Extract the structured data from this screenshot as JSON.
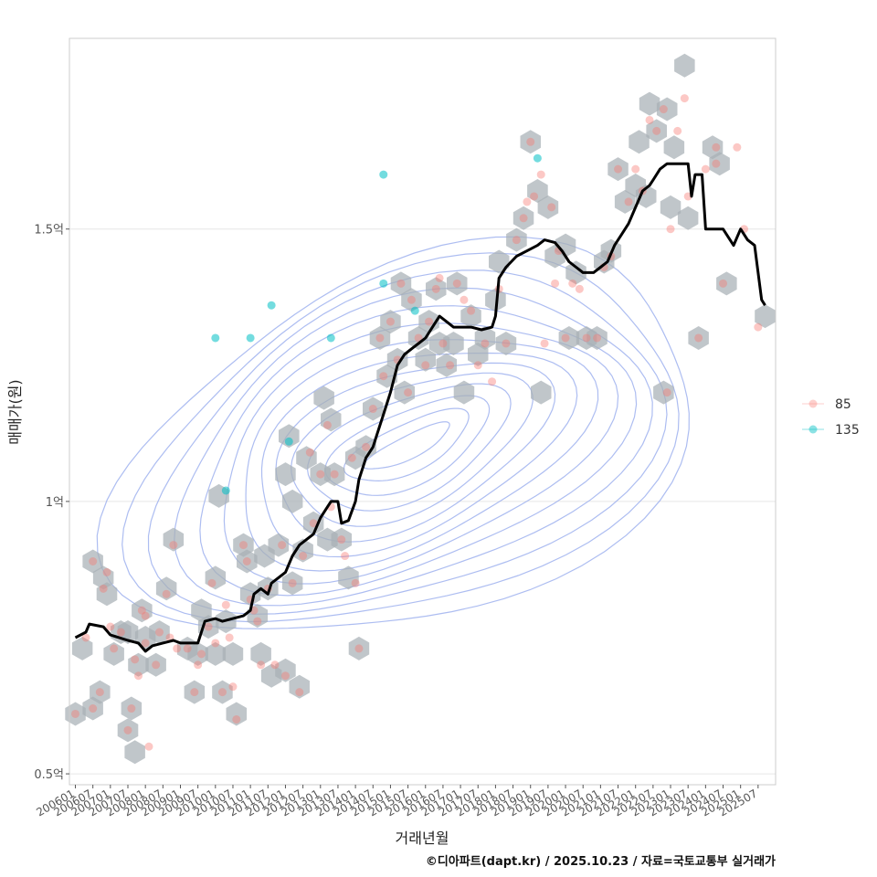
{
  "chart_data": {
    "type": "scatter",
    "xlabel": "거래년월",
    "ylabel": "매매가(원)",
    "caption": "©디아파트(dapt.kr) / 2025.10.23 / 자료=국토교통부 실거래가",
    "x_range": [
      2005.83,
      2026.0
    ],
    "y_range_eok": [
      0.48,
      1.85
    ],
    "y_ticks": [
      {
        "value": 0.5,
        "label": "0.5억"
      },
      {
        "value": 1.0,
        "label": "1억"
      },
      {
        "value": 1.5,
        "label": "1.5억"
      }
    ],
    "x_tick_labels": [
      "200601",
      "200607",
      "200701",
      "200707",
      "200801",
      "200807",
      "200901",
      "200907",
      "201001",
      "201007",
      "201101",
      "201107",
      "201201",
      "201207",
      "201301",
      "201307",
      "201401",
      "201407",
      "201501",
      "201507",
      "201601",
      "201607",
      "201701",
      "201707",
      "201801",
      "201807",
      "201901",
      "201907",
      "202001",
      "202007",
      "202101",
      "202107",
      "202201",
      "202207",
      "202301",
      "202307",
      "202401",
      "202407",
      "202501",
      "202507"
    ],
    "legend": [
      {
        "name": "85",
        "color": "#F8766D"
      },
      {
        "name": "135",
        "color": "#00BFC4"
      }
    ],
    "colors": {
      "hex": "#a8b0b6",
      "contour": "#9fb2ee",
      "trend": "#000000",
      "grid": "#e6e6e6",
      "panel_border": "#cccccc"
    },
    "series": [
      {
        "name": "85",
        "points": [
          [
            2006.0,
            0.61
          ],
          [
            2006.3,
            0.75
          ],
          [
            2006.5,
            0.62
          ],
          [
            2006.5,
            0.89
          ],
          [
            2006.7,
            0.65
          ],
          [
            2006.8,
            0.84
          ],
          [
            2006.9,
            0.87
          ],
          [
            2007.0,
            0.77
          ],
          [
            2007.1,
            0.73
          ],
          [
            2007.3,
            0.76
          ],
          [
            2007.5,
            0.58
          ],
          [
            2007.6,
            0.62
          ],
          [
            2007.7,
            0.71
          ],
          [
            2007.8,
            0.68
          ],
          [
            2007.9,
            0.8
          ],
          [
            2008.0,
            0.74
          ],
          [
            2008.0,
            0.79
          ],
          [
            2008.1,
            0.55
          ],
          [
            2008.3,
            0.7
          ],
          [
            2008.4,
            0.76
          ],
          [
            2008.6,
            0.83
          ],
          [
            2008.7,
            0.75
          ],
          [
            2008.8,
            0.92
          ],
          [
            2008.9,
            0.73
          ],
          [
            2009.2,
            0.73
          ],
          [
            2009.4,
            0.65
          ],
          [
            2009.5,
            0.7
          ],
          [
            2009.6,
            0.72
          ],
          [
            2009.8,
            0.77
          ],
          [
            2009.9,
            0.85
          ],
          [
            2010.0,
            0.74
          ],
          [
            2010.2,
            0.65
          ],
          [
            2010.3,
            0.81
          ],
          [
            2010.4,
            0.75
          ],
          [
            2010.5,
            0.66
          ],
          [
            2010.6,
            0.6
          ],
          [
            2010.8,
            0.92
          ],
          [
            2010.9,
            0.89
          ],
          [
            2011.0,
            0.82
          ],
          [
            2011.1,
            0.8
          ],
          [
            2011.2,
            0.78
          ],
          [
            2011.3,
            0.7
          ],
          [
            2011.5,
            0.84
          ],
          [
            2011.7,
            0.7
          ],
          [
            2011.9,
            0.92
          ],
          [
            2012.0,
            0.68
          ],
          [
            2012.2,
            0.85
          ],
          [
            2012.4,
            0.65
          ],
          [
            2012.5,
            0.9
          ],
          [
            2012.7,
            1.09
          ],
          [
            2012.8,
            0.96
          ],
          [
            2013.0,
            1.05
          ],
          [
            2013.2,
            1.14
          ],
          [
            2013.3,
            0.99
          ],
          [
            2013.4,
            1.05
          ],
          [
            2013.6,
            0.93
          ],
          [
            2013.7,
            0.9
          ],
          [
            2013.9,
            1.08
          ],
          [
            2014.0,
            0.85
          ],
          [
            2014.1,
            0.73
          ],
          [
            2014.3,
            1.1
          ],
          [
            2014.5,
            1.17
          ],
          [
            2014.7,
            1.3
          ],
          [
            2014.8,
            1.23
          ],
          [
            2015.0,
            1.33
          ],
          [
            2015.2,
            1.26
          ],
          [
            2015.3,
            1.4
          ],
          [
            2015.5,
            1.2
          ],
          [
            2015.6,
            1.37
          ],
          [
            2015.8,
            1.3
          ],
          [
            2016.0,
            1.25
          ],
          [
            2016.1,
            1.33
          ],
          [
            2016.3,
            1.39
          ],
          [
            2016.4,
            1.41
          ],
          [
            2016.5,
            1.29
          ],
          [
            2016.7,
            1.25
          ],
          [
            2016.9,
            1.4
          ],
          [
            2017.1,
            1.37
          ],
          [
            2017.3,
            1.35
          ],
          [
            2017.5,
            1.25
          ],
          [
            2017.7,
            1.29
          ],
          [
            2017.9,
            1.22
          ],
          [
            2018.1,
            1.39
          ],
          [
            2018.3,
            1.29
          ],
          [
            2018.6,
            1.48
          ],
          [
            2018.8,
            1.52
          ],
          [
            2019.0,
            1.66
          ],
          [
            2019.1,
            1.56
          ],
          [
            2019.3,
            1.6
          ],
          [
            2019.4,
            1.29
          ],
          [
            2019.6,
            1.54
          ],
          [
            2019.7,
            1.4
          ],
          [
            2020.0,
            1.3
          ],
          [
            2020.2,
            1.4
          ],
          [
            2020.4,
            1.39
          ],
          [
            2020.6,
            1.3
          ],
          [
            2020.9,
            1.3
          ],
          [
            2021.1,
            1.43
          ],
          [
            2021.3,
            1.45
          ],
          [
            2021.5,
            1.61
          ],
          [
            2021.8,
            1.55
          ],
          [
            2022.0,
            1.61
          ],
          [
            2022.2,
            1.57
          ],
          [
            2022.4,
            1.7
          ],
          [
            2022.6,
            1.68
          ],
          [
            2022.8,
            1.72
          ],
          [
            2022.9,
            1.2
          ],
          [
            2023.0,
            1.5
          ],
          [
            2023.2,
            1.68
          ],
          [
            2023.5,
            1.56
          ],
          [
            2023.8,
            1.3
          ],
          [
            2024.0,
            1.61
          ],
          [
            2024.3,
            1.65
          ],
          [
            2024.5,
            1.4
          ],
          [
            2024.9,
            1.65
          ],
          [
            2025.1,
            1.5
          ],
          [
            2025.5,
            1.32
          ],
          [
            2024.3,
            1.62
          ],
          [
            2023.4,
            1.74
          ],
          [
            2018.9,
            1.55
          ],
          [
            2019.8,
            1.46
          ]
        ]
      },
      {
        "name": "135",
        "points": [
          [
            2010.0,
            1.3
          ],
          [
            2010.3,
            1.02
          ],
          [
            2011.0,
            1.3
          ],
          [
            2011.6,
            1.36
          ],
          [
            2012.1,
            1.11
          ],
          [
            2013.3,
            1.3
          ],
          [
            2014.8,
            1.6
          ],
          [
            2014.8,
            1.4
          ],
          [
            2015.7,
            1.35
          ],
          [
            2019.2,
            1.63
          ]
        ]
      }
    ],
    "trend_line": [
      [
        2006.0,
        0.75
      ],
      [
        2006.3,
        0.76
      ],
      [
        2006.4,
        0.775
      ],
      [
        2006.8,
        0.77
      ],
      [
        2007.0,
        0.755
      ],
      [
        2007.5,
        0.745
      ],
      [
        2007.8,
        0.74
      ],
      [
        2008.0,
        0.725
      ],
      [
        2008.2,
        0.735
      ],
      [
        2008.5,
        0.74
      ],
      [
        2008.8,
        0.745
      ],
      [
        2009.0,
        0.74
      ],
      [
        2009.5,
        0.74
      ],
      [
        2009.7,
        0.78
      ],
      [
        2010.0,
        0.785
      ],
      [
        2010.2,
        0.78
      ],
      [
        2010.5,
        0.785
      ],
      [
        2010.8,
        0.79
      ],
      [
        2011.0,
        0.8
      ],
      [
        2011.1,
        0.83
      ],
      [
        2011.3,
        0.84
      ],
      [
        2011.5,
        0.83
      ],
      [
        2011.6,
        0.85
      ],
      [
        2011.8,
        0.86
      ],
      [
        2012.0,
        0.87
      ],
      [
        2012.2,
        0.9
      ],
      [
        2012.4,
        0.92
      ],
      [
        2012.6,
        0.93
      ],
      [
        2012.8,
        0.94
      ],
      [
        2013.0,
        0.97
      ],
      [
        2013.2,
        0.99
      ],
      [
        2013.3,
        1.0
      ],
      [
        2013.5,
        1.0
      ],
      [
        2013.6,
        0.96
      ],
      [
        2013.8,
        0.965
      ],
      [
        2014.0,
        1.0
      ],
      [
        2014.1,
        1.04
      ],
      [
        2014.3,
        1.08
      ],
      [
        2014.5,
        1.1
      ],
      [
        2014.6,
        1.12
      ],
      [
        2014.8,
        1.16
      ],
      [
        2015.0,
        1.2
      ],
      [
        2015.2,
        1.25
      ],
      [
        2015.4,
        1.27
      ],
      [
        2015.6,
        1.28
      ],
      [
        2015.8,
        1.29
      ],
      [
        2016.0,
        1.3
      ],
      [
        2016.2,
        1.32
      ],
      [
        2016.4,
        1.34
      ],
      [
        2016.6,
        1.33
      ],
      [
        2016.8,
        1.32
      ],
      [
        2017.0,
        1.32
      ],
      [
        2017.3,
        1.32
      ],
      [
        2017.6,
        1.315
      ],
      [
        2017.9,
        1.32
      ],
      [
        2018.0,
        1.34
      ],
      [
        2018.1,
        1.41
      ],
      [
        2018.3,
        1.43
      ],
      [
        2018.6,
        1.45
      ],
      [
        2018.9,
        1.46
      ],
      [
        2019.2,
        1.47
      ],
      [
        2019.4,
        1.48
      ],
      [
        2019.7,
        1.475
      ],
      [
        2019.9,
        1.46
      ],
      [
        2020.1,
        1.44
      ],
      [
        2020.3,
        1.43
      ],
      [
        2020.5,
        1.42
      ],
      [
        2020.8,
        1.42
      ],
      [
        2021.0,
        1.43
      ],
      [
        2021.2,
        1.44
      ],
      [
        2021.4,
        1.47
      ],
      [
        2021.6,
        1.49
      ],
      [
        2021.8,
        1.51
      ],
      [
        2022.0,
        1.54
      ],
      [
        2022.2,
        1.57
      ],
      [
        2022.4,
        1.58
      ],
      [
        2022.5,
        1.59
      ],
      [
        2022.7,
        1.61
      ],
      [
        2022.9,
        1.62
      ],
      [
        2023.1,
        1.62
      ],
      [
        2023.3,
        1.62
      ],
      [
        2023.5,
        1.62
      ],
      [
        2023.6,
        1.56
      ],
      [
        2023.7,
        1.6
      ],
      [
        2023.9,
        1.6
      ],
      [
        2024.0,
        1.5
      ],
      [
        2024.2,
        1.5
      ],
      [
        2024.5,
        1.5
      ],
      [
        2024.8,
        1.47
      ],
      [
        2025.0,
        1.5
      ],
      [
        2025.2,
        1.48
      ],
      [
        2025.4,
        1.47
      ],
      [
        2025.6,
        1.37
      ],
      [
        2025.7,
        1.36
      ]
    ],
    "hex_bins": [
      [
        2006.0,
        0.61
      ],
      [
        2006.2,
        0.73
      ],
      [
        2006.5,
        0.62
      ],
      [
        2006.5,
        0.89
      ],
      [
        2006.7,
        0.65
      ],
      [
        2006.8,
        0.86
      ],
      [
        2006.9,
        0.83
      ],
      [
        2007.1,
        0.72
      ],
      [
        2007.3,
        0.76
      ],
      [
        2007.5,
        0.58
      ],
      [
        2007.5,
        0.76
      ],
      [
        2007.6,
        0.62
      ],
      [
        2007.7,
        0.54
      ],
      [
        2007.8,
        0.7
      ],
      [
        2007.9,
        0.8
      ],
      [
        2008.0,
        0.75
      ],
      [
        2008.3,
        0.7
      ],
      [
        2008.4,
        0.76
      ],
      [
        2008.6,
        0.84
      ],
      [
        2008.8,
        0.93
      ],
      [
        2009.2,
        0.73
      ],
      [
        2009.4,
        0.65
      ],
      [
        2009.5,
        0.72
      ],
      [
        2009.6,
        0.8
      ],
      [
        2009.8,
        0.77
      ],
      [
        2010.0,
        0.72
      ],
      [
        2010.0,
        0.86
      ],
      [
        2010.1,
        1.01
      ],
      [
        2010.2,
        0.65
      ],
      [
        2010.3,
        0.78
      ],
      [
        2010.5,
        0.72
      ],
      [
        2010.6,
        0.61
      ],
      [
        2010.8,
        0.92
      ],
      [
        2010.9,
        0.89
      ],
      [
        2011.0,
        0.83
      ],
      [
        2011.2,
        0.79
      ],
      [
        2011.3,
        0.72
      ],
      [
        2011.4,
        0.9
      ],
      [
        2011.5,
        0.84
      ],
      [
        2011.6,
        0.68
      ],
      [
        2011.8,
        0.92
      ],
      [
        2012.0,
        0.69
      ],
      [
        2012.0,
        1.05
      ],
      [
        2012.1,
        1.12
      ],
      [
        2012.2,
        0.85
      ],
      [
        2012.2,
        1.0
      ],
      [
        2012.4,
        0.66
      ],
      [
        2012.5,
        0.91
      ],
      [
        2012.6,
        1.08
      ],
      [
        2012.8,
        0.96
      ],
      [
        2013.0,
        1.05
      ],
      [
        2013.1,
        1.19
      ],
      [
        2013.2,
        0.93
      ],
      [
        2013.3,
        1.15
      ],
      [
        2013.4,
        1.05
      ],
      [
        2013.6,
        0.93
      ],
      [
        2013.8,
        0.86
      ],
      [
        2014.0,
        1.08
      ],
      [
        2014.1,
        0.73
      ],
      [
        2014.3,
        1.1
      ],
      [
        2014.5,
        1.17
      ],
      [
        2014.7,
        1.3
      ],
      [
        2014.9,
        1.23
      ],
      [
        2015.0,
        1.33
      ],
      [
        2015.2,
        1.26
      ],
      [
        2015.3,
        1.4
      ],
      [
        2015.4,
        1.2
      ],
      [
        2015.6,
        1.37
      ],
      [
        2015.8,
        1.3
      ],
      [
        2016.0,
        1.26
      ],
      [
        2016.1,
        1.33
      ],
      [
        2016.3,
        1.39
      ],
      [
        2016.4,
        1.29
      ],
      [
        2016.6,
        1.25
      ],
      [
        2016.8,
        1.29
      ],
      [
        2016.9,
        1.4
      ],
      [
        2017.1,
        1.2
      ],
      [
        2017.3,
        1.34
      ],
      [
        2017.5,
        1.27
      ],
      [
        2017.7,
        1.3
      ],
      [
        2018.0,
        1.37
      ],
      [
        2018.1,
        1.44
      ],
      [
        2018.3,
        1.29
      ],
      [
        2018.6,
        1.48
      ],
      [
        2018.8,
        1.52
      ],
      [
        2019.0,
        1.66
      ],
      [
        2019.2,
        1.57
      ],
      [
        2019.3,
        1.2
      ],
      [
        2019.5,
        1.54
      ],
      [
        2019.7,
        1.45
      ],
      [
        2020.0,
        1.47
      ],
      [
        2020.1,
        1.3
      ],
      [
        2020.3,
        1.42
      ],
      [
        2020.6,
        1.3
      ],
      [
        2020.9,
        1.3
      ],
      [
        2021.1,
        1.44
      ],
      [
        2021.3,
        1.46
      ],
      [
        2021.5,
        1.61
      ],
      [
        2021.7,
        1.55
      ],
      [
        2022.0,
        1.58
      ],
      [
        2022.1,
        1.66
      ],
      [
        2022.3,
        1.56
      ],
      [
        2022.4,
        1.73
      ],
      [
        2022.6,
        1.68
      ],
      [
        2022.8,
        1.2
      ],
      [
        2022.9,
        1.72
      ],
      [
        2023.0,
        1.54
      ],
      [
        2023.1,
        1.65
      ],
      [
        2023.4,
        1.8
      ],
      [
        2023.5,
        1.52
      ],
      [
        2023.8,
        1.3
      ],
      [
        2024.2,
        1.65
      ],
      [
        2024.4,
        1.62
      ],
      [
        2024.6,
        1.4
      ],
      [
        2025.7,
        1.34
      ]
    ]
  }
}
